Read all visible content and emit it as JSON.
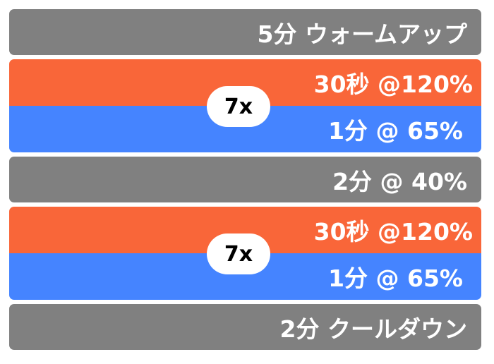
{
  "colors": {
    "rest": "#808080",
    "high": "#F96639",
    "low": "#4584FF"
  },
  "steps": [
    {
      "label": "5分 ウォームアップ"
    },
    {
      "repeat": "7x",
      "high": "30秒 @120%",
      "low": "1分 @ 65%"
    },
    {
      "label": "2分 @ 40%"
    },
    {
      "repeat": "7x",
      "high": "30秒 @120%",
      "low": "1分 @ 65%"
    },
    {
      "label": "2分 クールダウン"
    }
  ]
}
